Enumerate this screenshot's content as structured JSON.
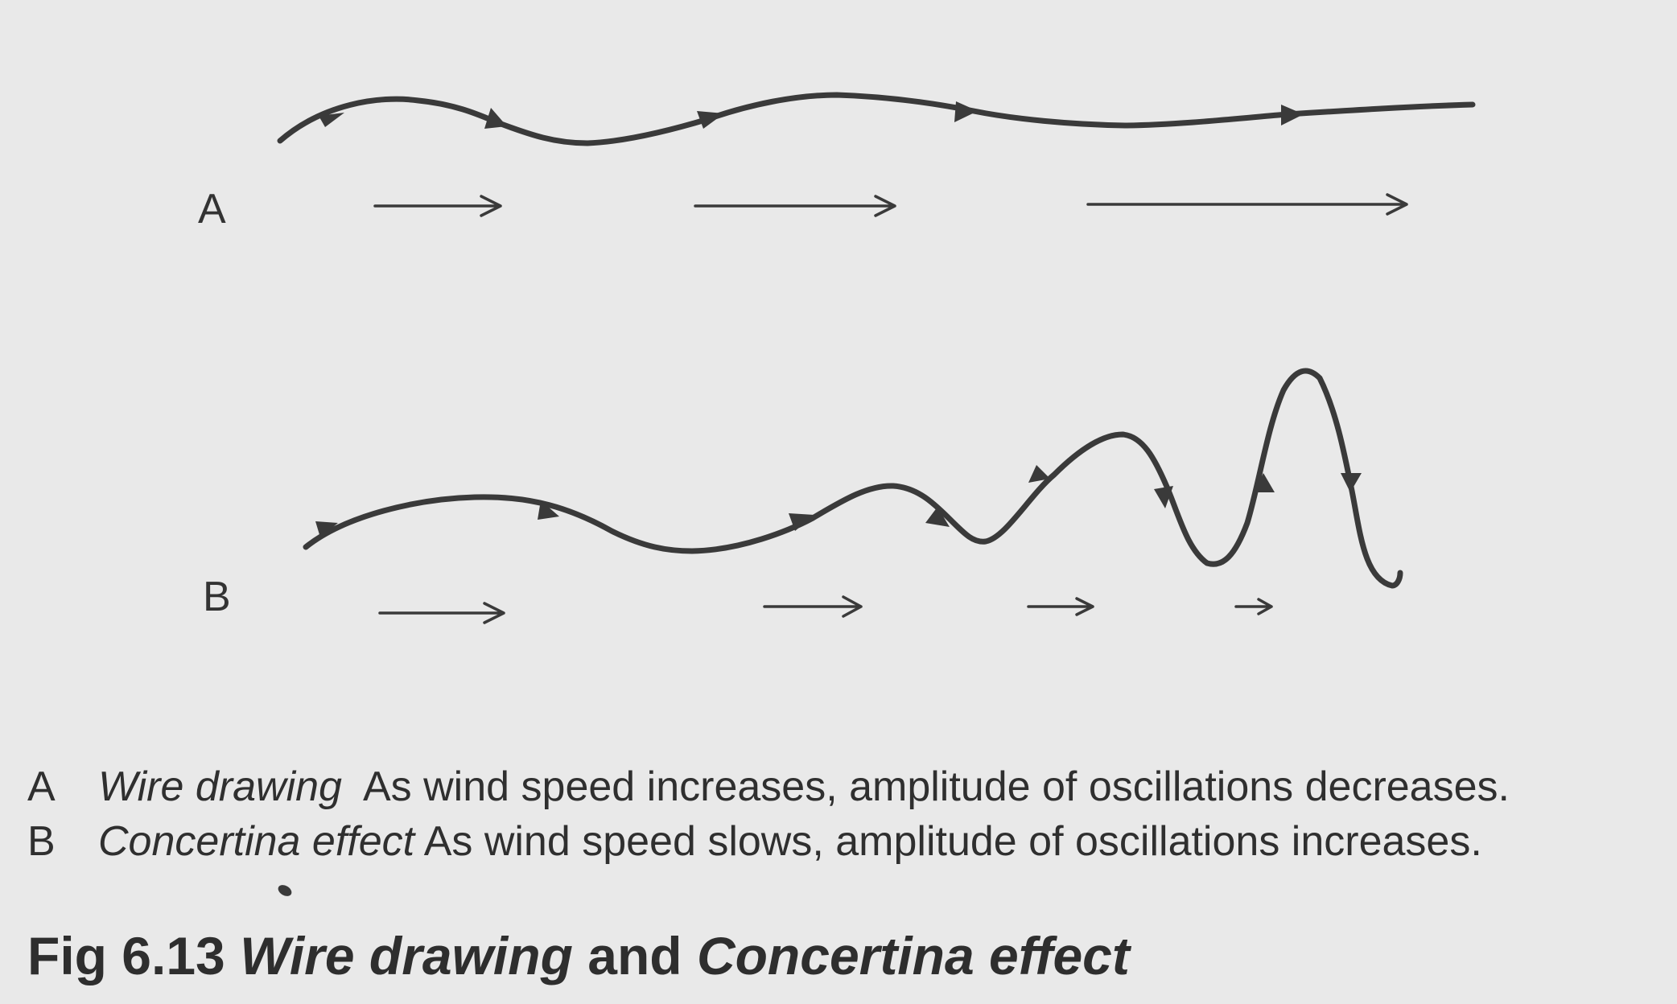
{
  "panels": {
    "a": {
      "letter": "A"
    },
    "b": {
      "letter": "B"
    }
  },
  "captions": {
    "a": {
      "key": "A",
      "term": "Wire drawing",
      "text": "As wind speed increases, amplitude of oscillations decreases."
    },
    "b": {
      "key": "B",
      "term": "Concertina effect",
      "text": "As wind speed slows, amplitude of oscillations increases."
    }
  },
  "figure": {
    "number": "Fig 6.13",
    "term_a": "Wire drawing",
    "joiner": "and",
    "term_b": "Concertina effect"
  },
  "colors": {
    "ink": "#3a3a3a",
    "paper": "#e9e9e9"
  }
}
